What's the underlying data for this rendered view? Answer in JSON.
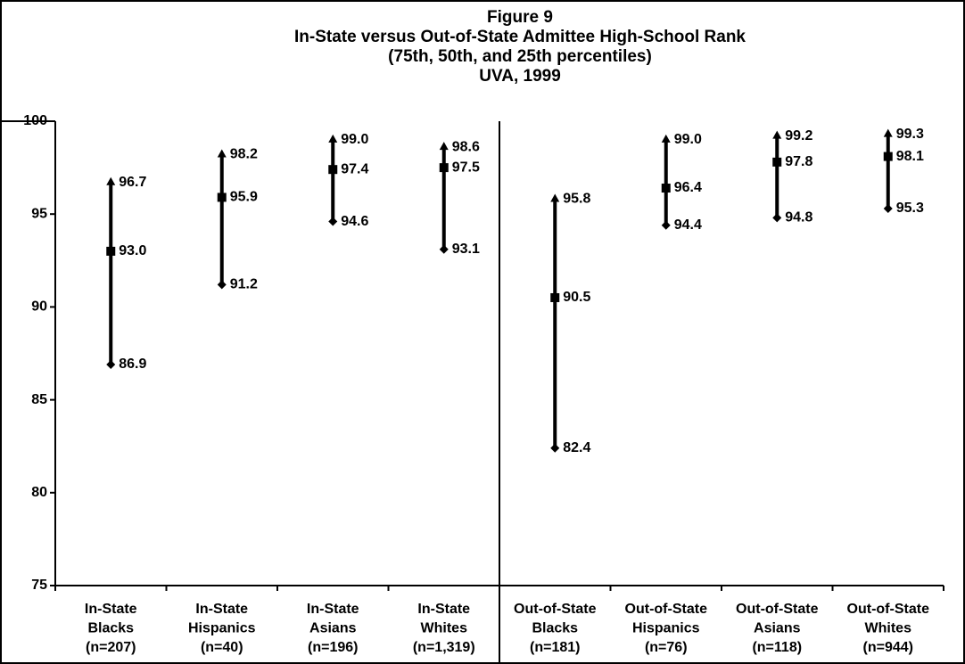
{
  "chart_data": {
    "type": "hilo",
    "title": [
      "Figure 9",
      "In-State versus Out-of-State Admittee High-School Rank",
      "(75th, 50th, and 25th percentiles)",
      "UVA, 1999"
    ],
    "categories": [
      [
        "In-State",
        "Blacks",
        "(n=207)"
      ],
      [
        "In-State",
        "Hispanics",
        "(n=40)"
      ],
      [
        "In-State",
        "Asians",
        "(n=196)"
      ],
      [
        "In-State",
        "Whites",
        "(n=1,319)"
      ],
      [
        "Out-of-State",
        "Blacks",
        "(n=181)"
      ],
      [
        "Out-of-State",
        "Hispanics",
        "(n=76)"
      ],
      [
        "Out-of-State",
        "Asians",
        "(n=118)"
      ],
      [
        "Out-of-State",
        "Whites",
        "(n=944)"
      ]
    ],
    "high": {
      "values": [
        96.7,
        98.2,
        99,
        98.6,
        95.8,
        99,
        99.2,
        99.3
      ],
      "value_labels": [
        "96.7",
        "98.2",
        "99.0",
        "98.6",
        "95.8",
        "99.0",
        "99.2",
        "99.3"
      ]
    },
    "mid": {
      "values": [
        93,
        95.9,
        97.4,
        97.5,
        90.5,
        96.4,
        97.8,
        98.1
      ],
      "value_labels": [
        "93.0",
        "95.9",
        "97.4",
        "97.5",
        "90.5",
        "96.4",
        "97.8",
        "98.1"
      ]
    },
    "low": {
      "values": [
        86.9,
        91.2,
        94.6,
        93.1,
        82.4,
        94.4,
        94.8,
        95.3
      ],
      "value_labels": [
        "86.9",
        "91.2",
        "94.6",
        "93.1",
        "82.4",
        "94.4",
        "94.8",
        "95.3"
      ]
    },
    "color": "#000000",
    "ylim": [
      75,
      100
    ],
    "yticks": [
      75,
      80,
      85,
      90,
      95,
      100
    ]
  }
}
